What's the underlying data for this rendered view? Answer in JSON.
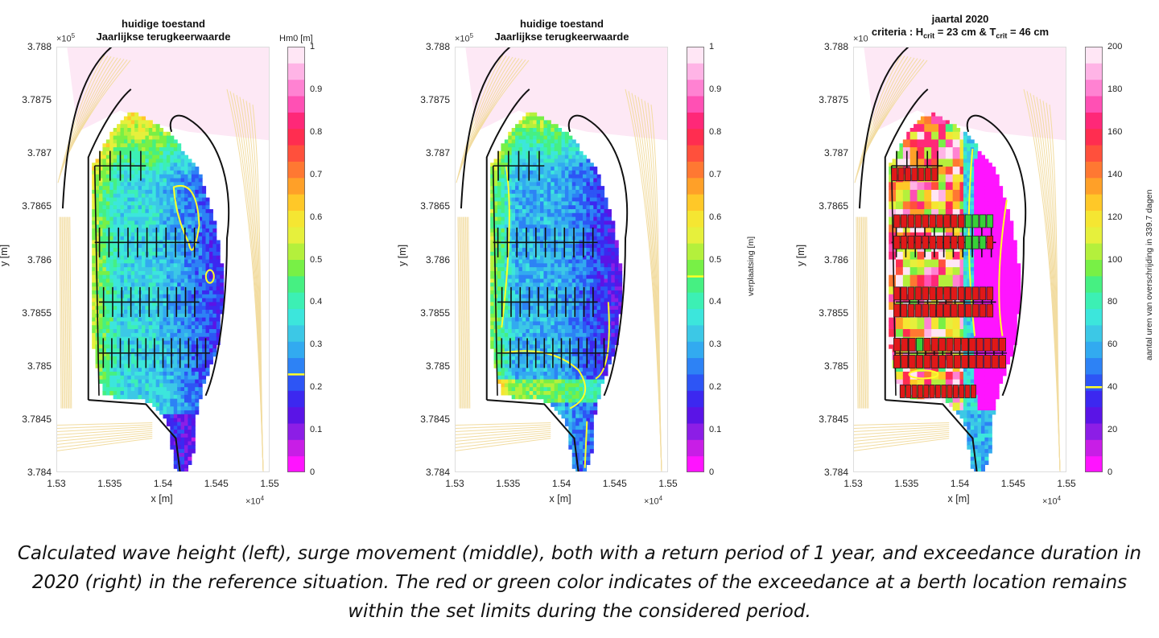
{
  "chart_data": [
    {
      "type": "heatmap",
      "title": "huidige toestand",
      "subtitle": "Jaarlijkse terugkeerwaarde",
      "xlabel": "x [m]",
      "ylabel": "y [m]",
      "x_ticks": [
        "1.53",
        "1.535",
        "1.54",
        "1.545",
        "1.55"
      ],
      "x_exponent": "4",
      "y_ticks": [
        "3.788",
        "3.7875",
        "3.787",
        "3.7865",
        "3.786",
        "3.7855",
        "3.785",
        "3.7845",
        "3.784"
      ],
      "y_exponent": "5",
      "colorbar": {
        "title": "Hm0 [m]",
        "label": "",
        "ticks": [
          "0",
          "0.1",
          "0.2",
          "0.3",
          "0.4",
          "0.5",
          "0.6",
          "0.7",
          "0.8",
          "0.9",
          "1"
        ],
        "range": [
          0,
          1
        ],
        "threshold": 0.23
      }
    },
    {
      "type": "heatmap",
      "title": "huidige toestand",
      "subtitle": "Jaarlijkse terugkeerwaarde",
      "xlabel": "x [m]",
      "ylabel": "y [m]",
      "x_ticks": [
        "1.53",
        "1.535",
        "1.54",
        "1.545",
        "1.55"
      ],
      "x_exponent": "4",
      "y_ticks": [
        "3.788",
        "3.7875",
        "3.787",
        "3.7865",
        "3.786",
        "3.7855",
        "3.785",
        "3.7845",
        "3.784"
      ],
      "y_exponent": "5",
      "colorbar": {
        "title": "",
        "label": "verplaatsing [m]",
        "ticks": [
          "0",
          "0.1",
          "0.2",
          "0.3",
          "0.4",
          "0.5",
          "0.6",
          "0.7",
          "0.8",
          "0.9",
          "1"
        ],
        "range": [
          0,
          1
        ],
        "threshold": 0.46
      }
    },
    {
      "type": "heatmap",
      "title": "jaartal 2020",
      "subtitle_parts": [
        "criteria  : H",
        "crit",
        " = 23 cm & T",
        "crit",
        " = 46 cm"
      ],
      "xlabel": "x [m]",
      "ylabel": "y [m]",
      "x_ticks": [
        "1.53",
        "1.535",
        "1.54",
        "1.545",
        "1.55"
      ],
      "x_exponent": "4",
      "y_ticks": [
        "3.788",
        "3.7875",
        "3.787",
        "3.7865",
        "3.786",
        "3.7855",
        "3.785",
        "3.7845",
        "3.784"
      ],
      "y_exponent": "",
      "colorbar": {
        "title": "",
        "label": "aantal uren van overschrijding in 339.7 dagen",
        "ticks": [
          "0",
          "20",
          "40",
          "60",
          "80",
          "100",
          "120",
          "140",
          "160",
          "180",
          "200"
        ],
        "range": [
          0,
          200
        ],
        "threshold": 40
      }
    }
  ],
  "caption": "Calculated wave height (left), surge movement (middle), both with a return period of 1 year, and exceedance duration in 2020 (right) in the reference situation. The red or green color indicates of the exceedance at a berth location remains within the set limits during the considered period.",
  "colors": {
    "colormap": [
      "#ff14ff",
      "#c81ee6",
      "#8c1ee6",
      "#5a14e6",
      "#3c28f0",
      "#2d55f5",
      "#2d82f5",
      "#32aaf0",
      "#3cc8e6",
      "#3ce6dc",
      "#3cf0b4",
      "#46f082",
      "#78f046",
      "#b4f03c",
      "#e6f03c",
      "#f5e632",
      "#ffc828",
      "#ffa028",
      "#ff7832",
      "#ff503c",
      "#ff2d50",
      "#ff2878",
      "#ff50b4",
      "#ff82d2",
      "#ffb4e6",
      "#ffe6f5"
    ],
    "land_contour": "#f2dca0",
    "breakwater": "#111111",
    "contour": "#ffff28",
    "berth_red": "#e01818",
    "berth_green": "#38d038",
    "sea_pink": "#fde8f5"
  }
}
